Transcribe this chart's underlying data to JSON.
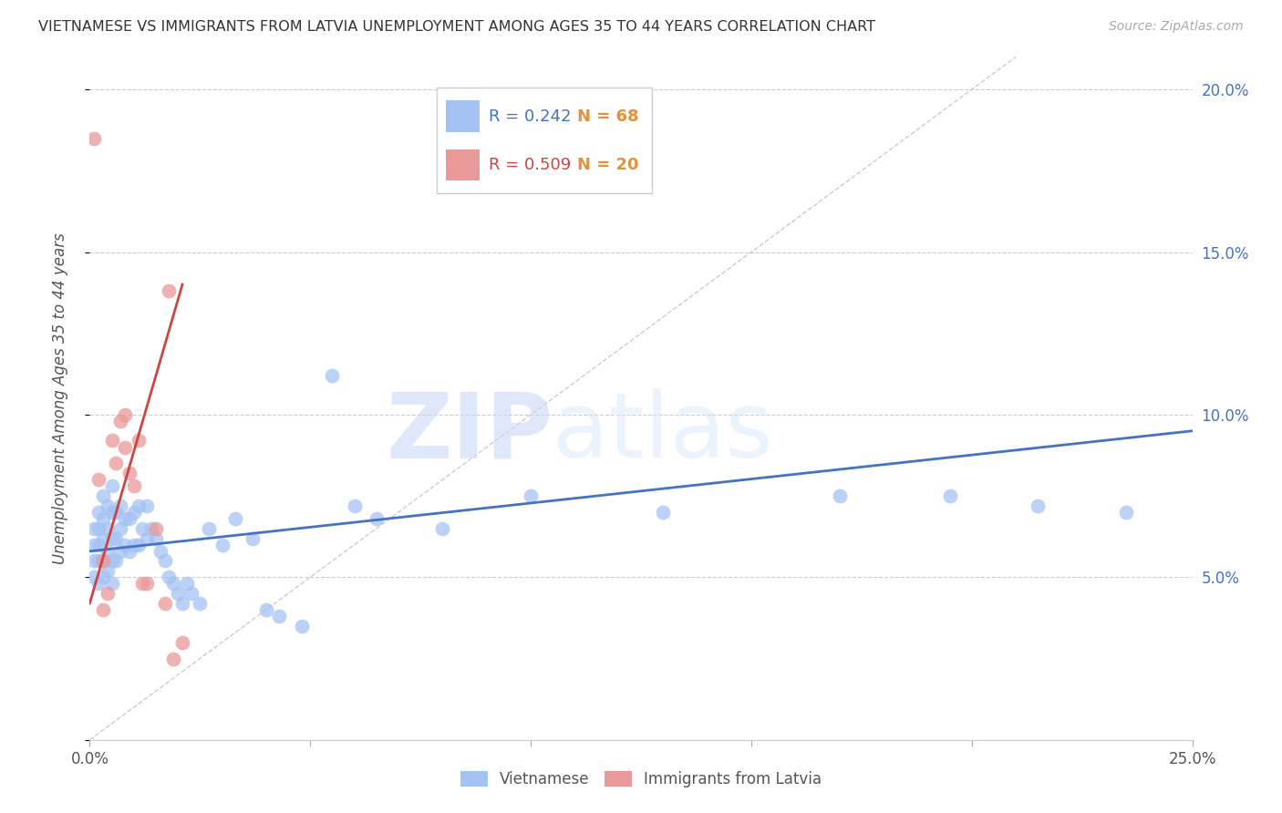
{
  "title": "VIETNAMESE VS IMMIGRANTS FROM LATVIA UNEMPLOYMENT AMONG AGES 35 TO 44 YEARS CORRELATION CHART",
  "source": "Source: ZipAtlas.com",
  "ylabel": "Unemployment Among Ages 35 to 44 years",
  "xlim": [
    0.0,
    0.25
  ],
  "ylim": [
    0.0,
    0.21
  ],
  "color_vietnamese": "#a4c2f4",
  "color_latvia": "#ea9999",
  "color_trendline_vietnamese": "#4472c4",
  "color_trendline_latvia": "#cc4444",
  "color_ref_line": "#cccccc",
  "watermark_text": "ZIPatlas",
  "legend_r1": "R = 0.242",
  "legend_n1": "N = 68",
  "legend_r2": "R = 0.509",
  "legend_n2": "N = 20",
  "legend_color_r1": "#4472c4",
  "legend_color_n1": "#e69138",
  "legend_color_r2": "#cc4444",
  "legend_color_n2": "#e69138",
  "viet_x": [
    0.001,
    0.001,
    0.001,
    0.001,
    0.002,
    0.002,
    0.002,
    0.002,
    0.002,
    0.003,
    0.003,
    0.003,
    0.003,
    0.003,
    0.004,
    0.004,
    0.004,
    0.004,
    0.005,
    0.005,
    0.005,
    0.005,
    0.005,
    0.006,
    0.006,
    0.006,
    0.007,
    0.007,
    0.007,
    0.008,
    0.008,
    0.009,
    0.009,
    0.01,
    0.01,
    0.011,
    0.011,
    0.012,
    0.013,
    0.013,
    0.014,
    0.015,
    0.016,
    0.017,
    0.018,
    0.019,
    0.02,
    0.021,
    0.022,
    0.023,
    0.025,
    0.027,
    0.03,
    0.033,
    0.037,
    0.04,
    0.043,
    0.048,
    0.055,
    0.06,
    0.065,
    0.08,
    0.1,
    0.13,
    0.17,
    0.195,
    0.215,
    0.235
  ],
  "viet_y": [
    0.05,
    0.055,
    0.06,
    0.065,
    0.048,
    0.055,
    0.06,
    0.065,
    0.07,
    0.05,
    0.055,
    0.062,
    0.068,
    0.075,
    0.052,
    0.058,
    0.065,
    0.072,
    0.048,
    0.055,
    0.062,
    0.07,
    0.078,
    0.055,
    0.062,
    0.07,
    0.058,
    0.065,
    0.072,
    0.06,
    0.068,
    0.058,
    0.068,
    0.06,
    0.07,
    0.06,
    0.072,
    0.065,
    0.062,
    0.072,
    0.065,
    0.062,
    0.058,
    0.055,
    0.05,
    0.048,
    0.045,
    0.042,
    0.048,
    0.045,
    0.042,
    0.065,
    0.06,
    0.068,
    0.062,
    0.04,
    0.038,
    0.035,
    0.112,
    0.072,
    0.068,
    0.065,
    0.075,
    0.07,
    0.075,
    0.075,
    0.072,
    0.07
  ],
  "latv_x": [
    0.001,
    0.002,
    0.003,
    0.003,
    0.004,
    0.005,
    0.006,
    0.007,
    0.008,
    0.008,
    0.009,
    0.01,
    0.011,
    0.012,
    0.013,
    0.015,
    0.017,
    0.018,
    0.019,
    0.021
  ],
  "latv_y": [
    0.185,
    0.08,
    0.055,
    0.04,
    0.045,
    0.092,
    0.085,
    0.098,
    0.1,
    0.09,
    0.082,
    0.078,
    0.092,
    0.048,
    0.048,
    0.065,
    0.042,
    0.138,
    0.025,
    0.03
  ],
  "viet_trend_x": [
    0.0,
    0.25
  ],
  "viet_trend_y": [
    0.058,
    0.095
  ],
  "latv_trend_x": [
    0.0,
    0.021
  ],
  "latv_trend_y": [
    0.042,
    0.14
  ]
}
